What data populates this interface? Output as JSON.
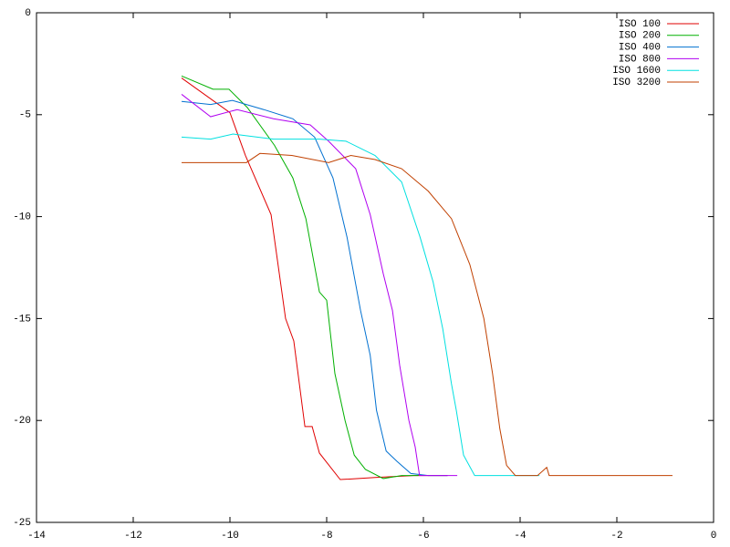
{
  "chart_data": {
    "type": "line",
    "xlim": [
      -14,
      0
    ],
    "xticks": [
      -14,
      -12,
      -10,
      -8,
      -6,
      -4,
      -2,
      0
    ],
    "ylim": [
      -25,
      0
    ],
    "yticks": [
      -25,
      -20,
      -15,
      -10,
      -5,
      0
    ],
    "legend": "top-right",
    "series": [
      {
        "name": "ISO 100",
        "color": "#e00000",
        "x": [
          -11,
          -10,
          -9.68,
          -9.15,
          -8.85,
          -8.68,
          -8.45,
          -8.3,
          -8.15,
          -7.72,
          -7,
          -6.2,
          -5.5
        ],
        "values": [
          -3.2,
          -4.9,
          -7,
          -9.9,
          -15,
          -16.1,
          -20.3,
          -20.3,
          -21.6,
          -22.9,
          -22.8,
          -22.7,
          -22.7
        ]
      },
      {
        "name": "ISO 200",
        "color": "#00b000",
        "x": [
          -11,
          -10.35,
          -10.02,
          -9.64,
          -9.08,
          -8.7,
          -8.43,
          -8.15,
          -8,
          -7.83,
          -7.62,
          -7.43,
          -7.2,
          -6.83,
          -6.45,
          -6.1
        ],
        "values": [
          -3.1,
          -3.75,
          -3.75,
          -4.65,
          -6.5,
          -8.1,
          -10.1,
          -13.7,
          -14.1,
          -17.7,
          -20,
          -21.7,
          -22.4,
          -22.85,
          -22.7,
          -22.7
        ]
      },
      {
        "name": "ISO 400",
        "color": "#0070d0",
        "x": [
          -11,
          -10.4,
          -9.95,
          -9.3,
          -8.7,
          -8.25,
          -7.87,
          -7.58,
          -7.3,
          -7.1,
          -6.97,
          -6.77,
          -6.55,
          -6.26,
          -5.9,
          -5.5
        ],
        "values": [
          -4.35,
          -4.5,
          -4.3,
          -4.75,
          -5.2,
          -6.1,
          -8.1,
          -11,
          -14.6,
          -16.8,
          -19.5,
          -21.5,
          -22,
          -22.6,
          -22.7,
          -22.7
        ]
      },
      {
        "name": "ISO 800",
        "color": "#b000f0",
        "x": [
          -11,
          -10.4,
          -9.85,
          -9.1,
          -8.34,
          -7.96,
          -7.4,
          -7.1,
          -6.83,
          -6.64,
          -6.49,
          -6.3,
          -6.17,
          -6.08,
          -5.7,
          -5.3
        ],
        "values": [
          -4,
          -5.1,
          -4.75,
          -5.2,
          -5.5,
          -6.3,
          -7.65,
          -9.9,
          -12.8,
          -14.6,
          -17.3,
          -20,
          -21.3,
          -22.7,
          -22.7,
          -22.7
        ]
      },
      {
        "name": "ISO 1600",
        "color": "#00e0e0",
        "x": [
          -11,
          -10.4,
          -9.94,
          -9.1,
          -8.15,
          -7.6,
          -7,
          -6.45,
          -6.07,
          -5.8,
          -5.6,
          -5.42,
          -5.32,
          -5.17,
          -4.94,
          -4.2,
          -3.6
        ],
        "values": [
          -6.1,
          -6.2,
          -5.95,
          -6.2,
          -6.2,
          -6.3,
          -7,
          -8.3,
          -11,
          -13.2,
          -15.5,
          -18.2,
          -19.5,
          -21.7,
          -22.7,
          -22.7,
          -22.7
        ]
      },
      {
        "name": "ISO 3200",
        "color": "#c04000",
        "x": [
          -11,
          -9.66,
          -9.38,
          -8.72,
          -7.96,
          -7.5,
          -7,
          -6.45,
          -5.9,
          -5.42,
          -5.04,
          -4.75,
          -4.57,
          -4.42,
          -4.28,
          -4.1,
          -3.64,
          -3.45,
          -3.4,
          -0.85
        ],
        "values": [
          -7.35,
          -7.35,
          -6.9,
          -7,
          -7.35,
          -7,
          -7.2,
          -7.65,
          -8.75,
          -10.1,
          -12.35,
          -15,
          -17.7,
          -20.4,
          -22.2,
          -22.7,
          -22.7,
          -22.3,
          -22.7,
          -22.7
        ]
      }
    ]
  }
}
